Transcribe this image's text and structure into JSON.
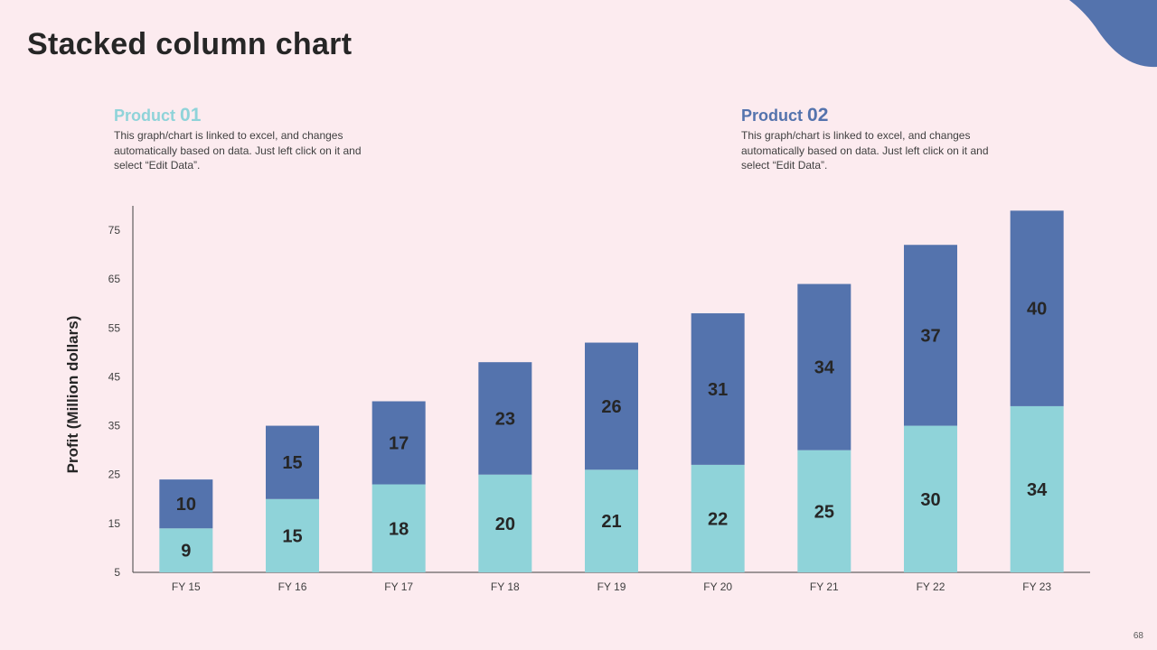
{
  "slide": {
    "title": "Stacked column chart",
    "page_number": "68"
  },
  "legend": [
    {
      "name": "Product ",
      "number": "01",
      "color": "#8fd3d9",
      "desc": "This graph/chart is linked to excel, and changes automatically based on data. Just left click on it and select “Edit Data”."
    },
    {
      "name": "Product ",
      "number": "02",
      "color": "#5473ad",
      "desc": "This graph/chart is linked to excel, and changes automatically based on data. Just left click on it and select “Edit Data”."
    }
  ],
  "chart_data": {
    "type": "bar",
    "stacked": true,
    "title": "",
    "xlabel": "",
    "ylabel": "Profit  (Million dollars)",
    "categories": [
      "FY 15",
      "FY 16",
      "FY 17",
      "FY 18",
      "FY 19",
      "FY 20",
      "FY 21",
      "FY 22",
      "FY 23"
    ],
    "series": [
      {
        "name": "Product 01",
        "color": "#8fd3d9",
        "label_color": "#262626",
        "values": [
          9,
          15,
          18,
          20,
          21,
          22,
          25,
          30,
          34
        ]
      },
      {
        "name": "Product 02",
        "color": "#5473ad",
        "label_color": "#ffffff",
        "values": [
          10,
          15,
          17,
          23,
          26,
          31,
          34,
          37,
          40
        ]
      }
    ],
    "ylim": [
      5,
      80
    ],
    "yticks": [
      5,
      15,
      25,
      35,
      45,
      55,
      65,
      75
    ],
    "grid": false
  },
  "colors": {
    "background": "#fcebef",
    "accent": "#5473ad"
  }
}
